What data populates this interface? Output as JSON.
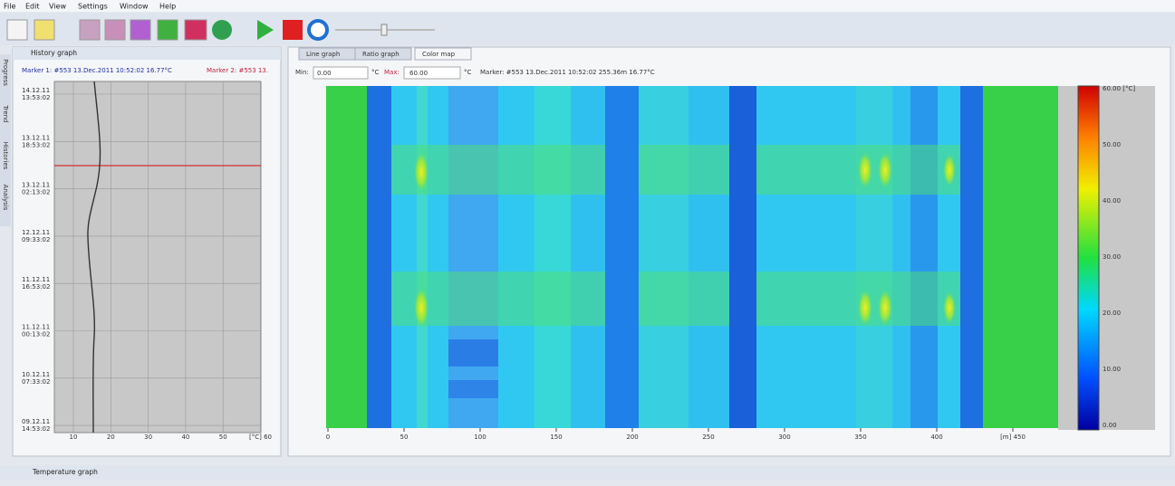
{
  "menu": [
    "File",
    "Edit",
    "View",
    "Settings",
    "Window",
    "Help"
  ],
  "side_tabs": [
    "Progress",
    "Trend",
    "Histories",
    "Analysis"
  ],
  "history_panel": {
    "title": "History graph",
    "marker1": "Marker 1: #553 13.Dec.2011 10:52:02 16.77°C",
    "marker2": "Marker 2: #553 13.",
    "y_labels": [
      {
        "date": "14.12.11",
        "time": "13:53:02"
      },
      {
        "date": "13.12.11",
        "time": "18:53:02"
      },
      {
        "date": "13.12.11",
        "time": "02:13:02"
      },
      {
        "date": "12.12.11",
        "time": "09:33:02"
      },
      {
        "date": "11.12.11",
        "time": "16:53:02"
      },
      {
        "date": "11.12.11",
        "time": "00:13:02"
      },
      {
        "date": "10.12.11",
        "time": "07:33:02"
      },
      {
        "date": "09.12.11",
        "time": "14:53:02"
      }
    ],
    "x_labels": [
      "10",
      "20",
      "30",
      "40",
      "50",
      "[°C] 60"
    ]
  },
  "tabs": [
    "Line graph",
    "Ratio graph",
    "Color map"
  ],
  "color_map": {
    "min_label": "Min:",
    "min_value": "0.00",
    "unit": "°C",
    "max_label": "Max:",
    "max_value": "60.00",
    "marker": "Marker: #553 13.Dec.2011 10:52:02 255.36m 16.77°C",
    "x_labels": [
      "0",
      "50",
      "100",
      "150",
      "200",
      "250",
      "300",
      "350",
      "400",
      "[m] 450"
    ],
    "colorbar_labels": [
      "60.00 [°C]",
      "50.00",
      "40.00",
      "30.00",
      "20.00",
      "10.00",
      "0.00"
    ]
  },
  "bottom_panel": {
    "title": "Temperature graph"
  }
}
